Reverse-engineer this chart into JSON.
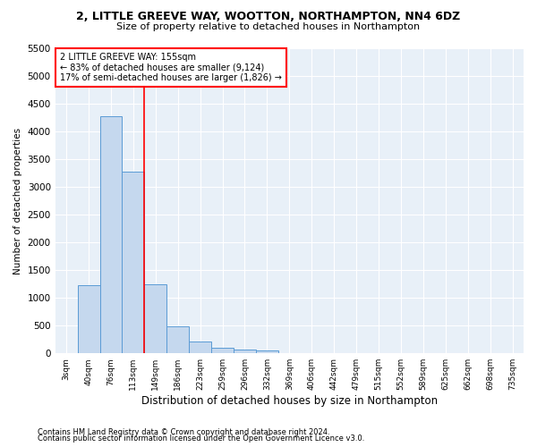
{
  "title1": "2, LITTLE GREEVE WAY, WOOTTON, NORTHAMPTON, NN4 6DZ",
  "title2": "Size of property relative to detached houses in Northampton",
  "xlabel": "Distribution of detached houses by size in Northampton",
  "ylabel": "Number of detached properties",
  "footnote1": "Contains HM Land Registry data © Crown copyright and database right 2024.",
  "footnote2": "Contains public sector information licensed under the Open Government Licence v3.0.",
  "bar_labels": [
    "3sqm",
    "40sqm",
    "76sqm",
    "113sqm",
    "149sqm",
    "186sqm",
    "223sqm",
    "259sqm",
    "296sqm",
    "332sqm",
    "369sqm",
    "406sqm",
    "442sqm",
    "479sqm",
    "515sqm",
    "552sqm",
    "589sqm",
    "625sqm",
    "662sqm",
    "698sqm",
    "735sqm"
  ],
  "bar_values": [
    0,
    1230,
    4280,
    3270,
    1250,
    490,
    210,
    100,
    65,
    50,
    0,
    0,
    0,
    0,
    0,
    0,
    0,
    0,
    0,
    0,
    0
  ],
  "bar_color": "#c5d8ee",
  "bar_edge_color": "#5b9bd5",
  "ylim": [
    0,
    5500
  ],
  "yticks": [
    0,
    500,
    1000,
    1500,
    2000,
    2500,
    3000,
    3500,
    4000,
    4500,
    5000,
    5500
  ],
  "property_label": "2 LITTLE GREEVE WAY: 155sqm",
  "annotation_line1": "← 83% of detached houses are smaller (9,124)",
  "annotation_line2": "17% of semi-detached houses are larger (1,826) →",
  "vline_x": 3.5,
  "background_color": "#ffffff",
  "grid_color": "#c8d8e8",
  "plot_bg_color": "#e8f0f8"
}
